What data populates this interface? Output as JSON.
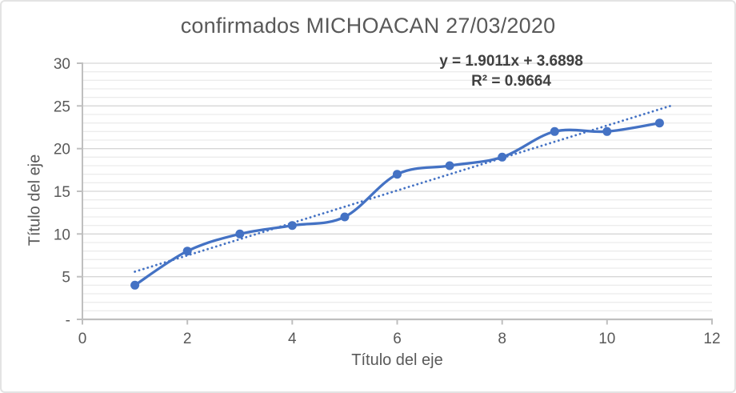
{
  "chart": {
    "title": "confirmados MICHOACAN 27/03/2020"
  },
  "chart_data": {
    "type": "line",
    "title": "confirmados MICHOACAN 27/03/2020",
    "xlabel": "Título del eje",
    "ylabel": "Título del eje",
    "x": [
      1,
      2,
      3,
      4,
      5,
      6,
      7,
      8,
      9,
      10,
      11
    ],
    "y": [
      4,
      8,
      10,
      11,
      12,
      17,
      18,
      19,
      22,
      22,
      23
    ],
    "xlim": [
      0,
      12
    ],
    "ylim": [
      0,
      30
    ],
    "x_ticks": [
      0,
      2,
      4,
      6,
      8,
      10,
      12
    ],
    "x_tick_labels": [
      "0",
      "2",
      "4",
      "6",
      "8",
      "10",
      "12"
    ],
    "y_ticks": [
      0,
      5,
      10,
      15,
      20,
      25,
      30
    ],
    "y_tick_labels": [
      "-",
      "5",
      "10",
      "15",
      "20",
      "25",
      "30"
    ],
    "grid": {
      "horizontal_minor_step": 1,
      "horizontal_major_step": 5,
      "vertical": false
    },
    "legend": "none",
    "smooth_line": true,
    "marker": "circle",
    "trendline": {
      "type": "linear",
      "slope": 1.9011,
      "intercept": 3.6898,
      "x_start": 1,
      "x_end": 11.2,
      "line_style": "dotted",
      "equation_label": "y = 1.9011x + 3.6898",
      "r2_label": "R² = 0.9664"
    }
  },
  "colors": {
    "series": "#4472C4",
    "trendline": "#4472C4",
    "title_text": "#595959",
    "axis_text": "#595959",
    "equation_text": "#404040",
    "gridline_minor": "#ECECEC",
    "gridline_major": "#D6D6D6",
    "axis_line": "#BFBFBF",
    "chart_border": "#E3E3E3",
    "background": "#FFFFFF"
  }
}
